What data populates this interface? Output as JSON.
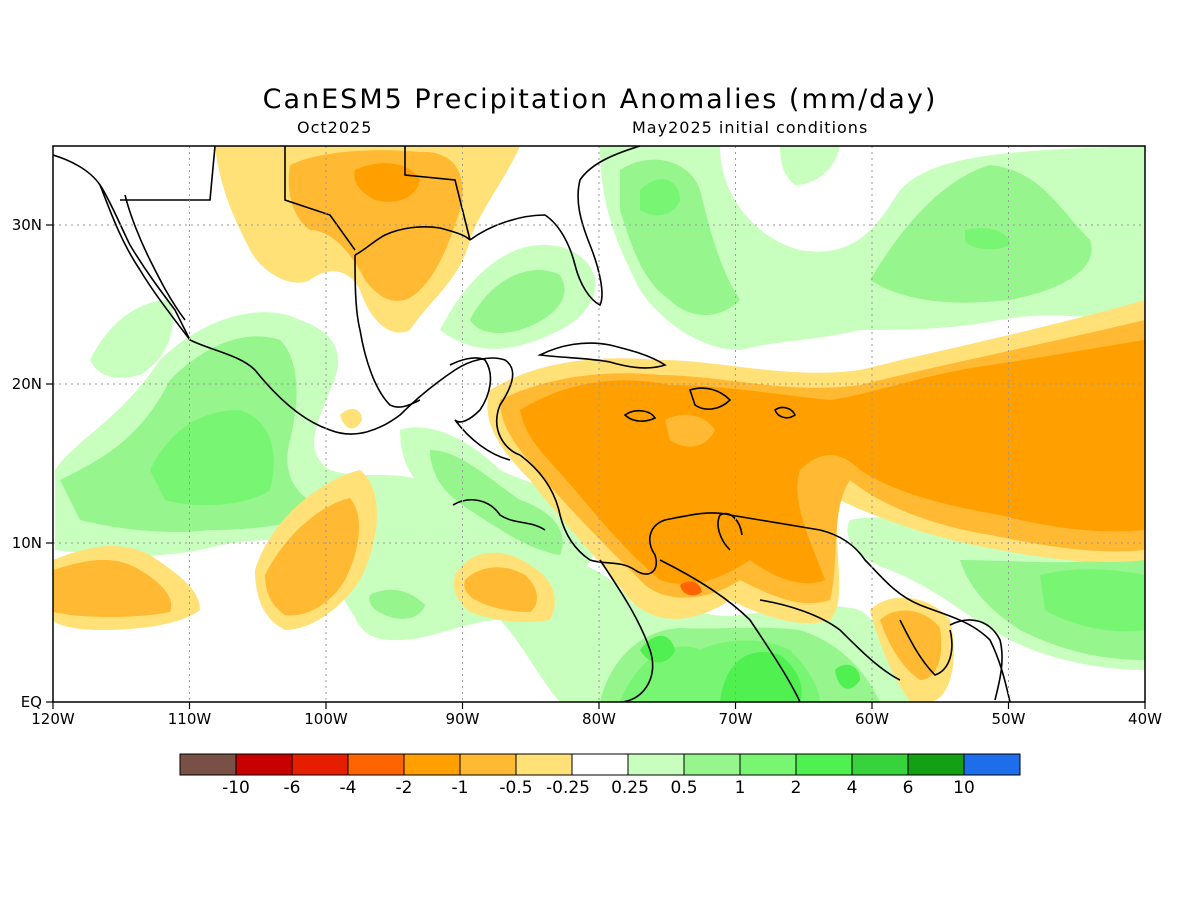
{
  "title": "CanESM5 Precipitation Anomalies (mm/day)",
  "subtitle_left": "Oct2025",
  "subtitle_right": "May2025 initial conditions",
  "map": {
    "lon_range": [
      -120,
      -40
    ],
    "lat_range": [
      0,
      35
    ],
    "x_ticks": [
      "120W",
      "110W",
      "100W",
      "90W",
      "80W",
      "70W",
      "60W",
      "50W",
      "40W"
    ],
    "y_ticks": [
      "EQ",
      "10N",
      "20N",
      "30N"
    ],
    "grid": "dotted"
  },
  "colorbar": {
    "colors": [
      "#785046",
      "#c80000",
      "#e61e00",
      "#ff6400",
      "#ffa000",
      "#ffb932",
      "#ffe178",
      "#ffffff",
      "#c8ffbe",
      "#96f58c",
      "#78f573",
      "#50f050",
      "#37d23c",
      "#14a014",
      "#1e6eeb"
    ],
    "labels": [
      "-10",
      "-6",
      "-4",
      "-2",
      "-1",
      "-0.5",
      "-0.25",
      "0.25",
      "0.5",
      "1",
      "2",
      "4",
      "6",
      "10"
    ]
  }
}
